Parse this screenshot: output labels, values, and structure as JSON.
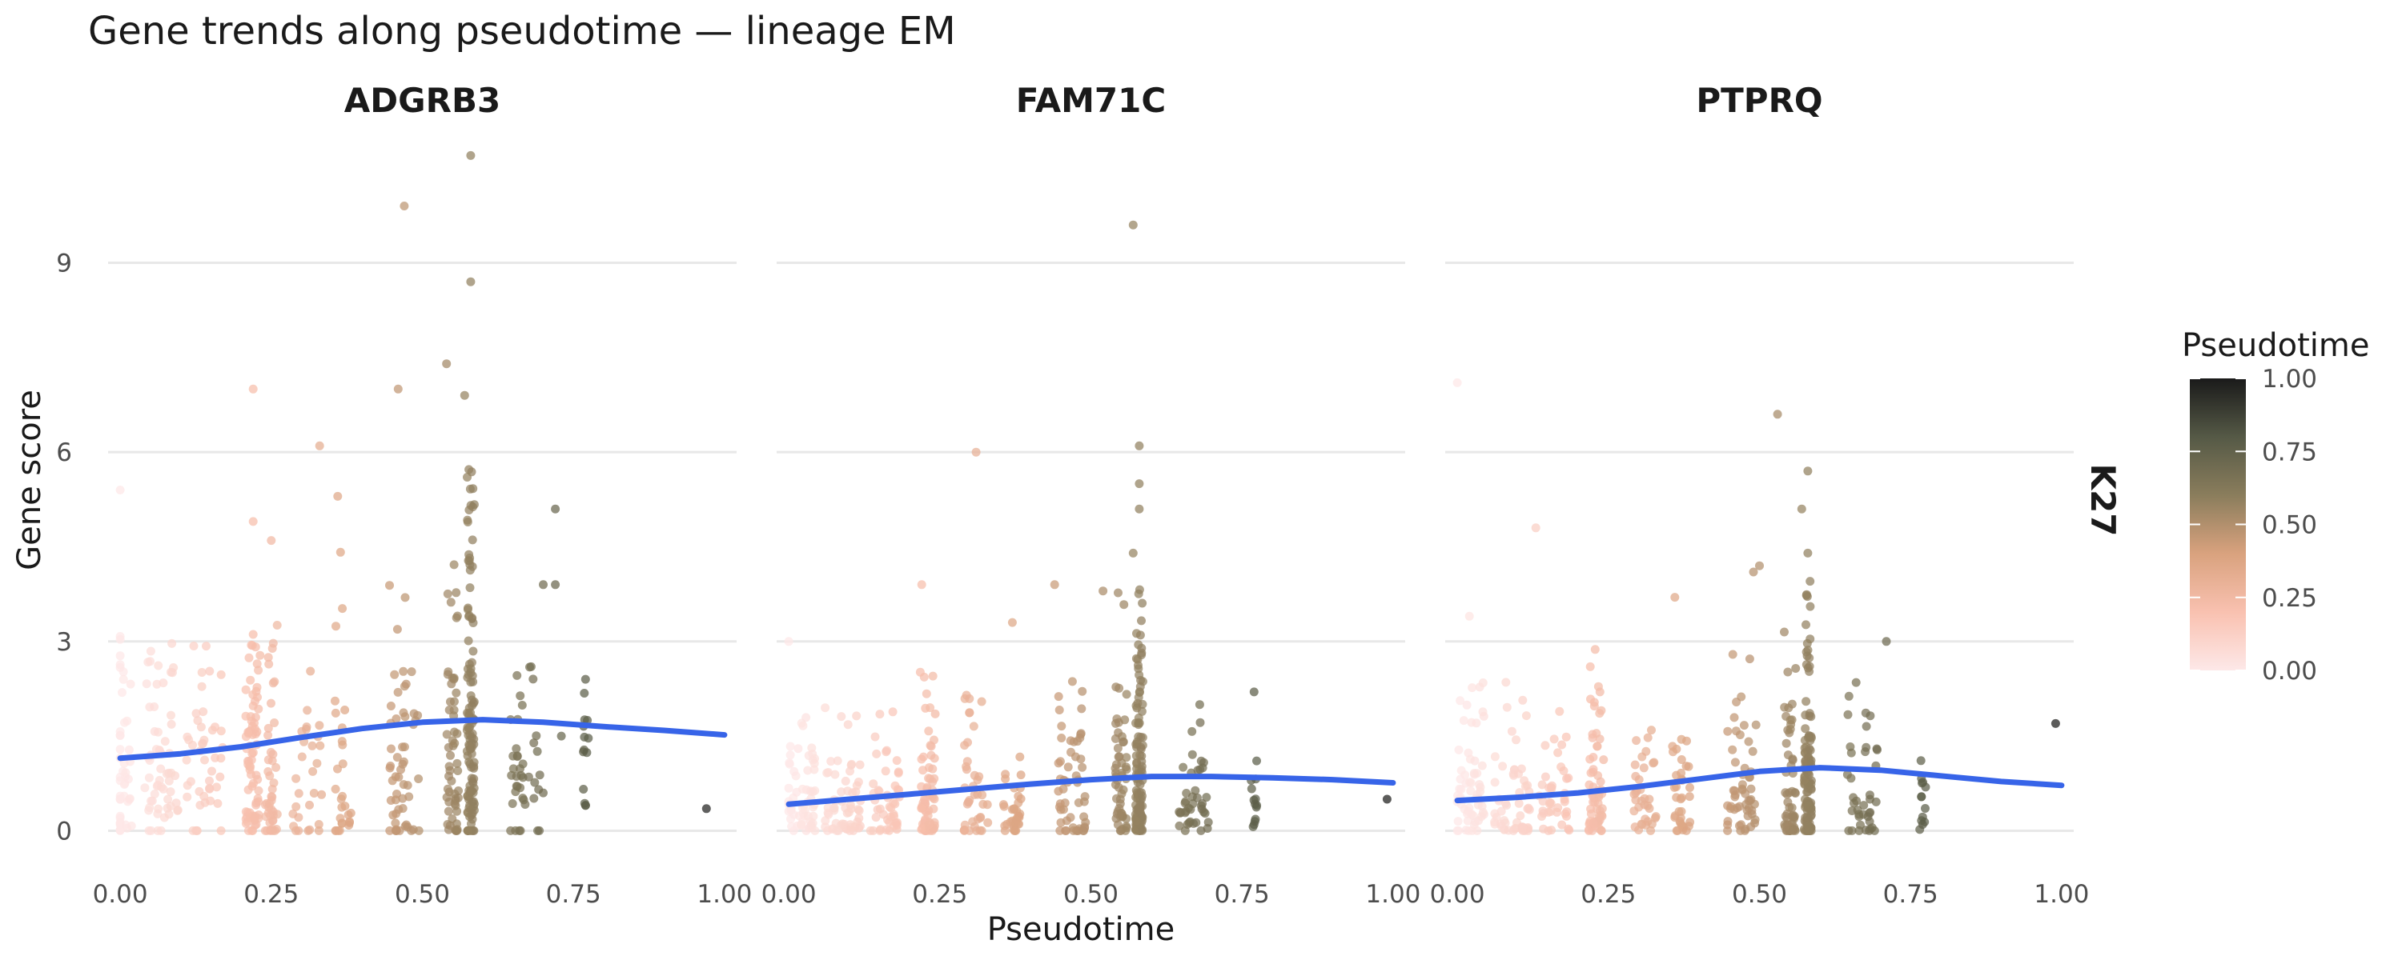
{
  "chart_data": {
    "type": "scatter",
    "title": "Gene trends along pseudotime — lineage EM",
    "xlabel": "Pseudotime",
    "ylabel": "Gene score",
    "xlim": [
      -0.02,
      1.02
    ],
    "ylim": [
      -0.4,
      11.2
    ],
    "x_ticks": [
      "0.00",
      "0.25",
      "0.50",
      "0.75",
      "1.00"
    ],
    "y_ticks": [
      "0",
      "3",
      "6",
      "9"
    ],
    "row_strip": "K27",
    "grid": true,
    "legend": {
      "title": "Pseudotime",
      "position": "right",
      "ticks": [
        "0.00",
        "0.25",
        "0.50",
        "0.75",
        "1.00"
      ],
      "colors": [
        "#fde8e8",
        "#f9c1b0",
        "#d9a27e",
        "#8a7d5c",
        "#555946",
        "#1a1a1a"
      ]
    },
    "trend_color": "#3764e8",
    "facets": [
      {
        "name": "ADGRB3",
        "trend": [
          [
            0.0,
            1.15
          ],
          [
            0.1,
            1.22
          ],
          [
            0.2,
            1.33
          ],
          [
            0.3,
            1.48
          ],
          [
            0.4,
            1.62
          ],
          [
            0.5,
            1.72
          ],
          [
            0.6,
            1.76
          ],
          [
            0.7,
            1.72
          ],
          [
            0.8,
            1.65
          ],
          [
            0.9,
            1.59
          ],
          [
            1.0,
            1.52
          ]
        ],
        "outliers": [
          [
            0.47,
            9.9
          ],
          [
            0.58,
            10.7
          ],
          [
            0.58,
            8.7
          ],
          [
            0.54,
            7.4
          ],
          [
            0.22,
            7.0
          ],
          [
            0.46,
            7.0
          ],
          [
            0.57,
            6.9
          ],
          [
            0.33,
            6.1
          ],
          [
            0.0,
            5.4
          ],
          [
            0.36,
            5.3
          ],
          [
            0.72,
            5.1
          ],
          [
            0.22,
            4.9
          ],
          [
            0.25,
            4.6
          ],
          [
            0.7,
            3.9
          ],
          [
            0.72,
            3.9
          ],
          [
            0.97,
            0.35
          ],
          [
            0.77,
            0.4
          ],
          [
            0.77,
            2.4
          ],
          [
            0.68,
            2.6
          ],
          [
            0.7,
            0.6
          ],
          [
            0.73,
            1.5
          ]
        ],
        "clusters": [
          {
            "x": 0.0,
            "w": 0.04,
            "n": 45,
            "max": 3.6,
            "base": 0.0,
            "spread": 1.0
          },
          {
            "x": 0.07,
            "w": 0.06,
            "n": 60,
            "max": 3.4,
            "base": 0.2,
            "spread": 1.2
          },
          {
            "x": 0.14,
            "w": 0.06,
            "n": 45,
            "max": 3.0,
            "base": 0.4,
            "spread": 1.2
          },
          {
            "x": 0.22,
            "w": 0.025,
            "n": 75,
            "max": 3.3,
            "base": 0.0,
            "spread": 1.5
          },
          {
            "x": 0.25,
            "w": 0.02,
            "n": 45,
            "max": 3.3,
            "base": 0.0,
            "spread": 1.2
          },
          {
            "x": 0.31,
            "w": 0.05,
            "n": 28,
            "max": 2.6,
            "base": 0.0,
            "spread": 1.2
          },
          {
            "x": 0.37,
            "w": 0.03,
            "n": 28,
            "max": 4.7,
            "base": 0.0,
            "spread": 1.4
          },
          {
            "x": 0.47,
            "w": 0.05,
            "n": 55,
            "max": 4.3,
            "base": 0.0,
            "spread": 1.5
          },
          {
            "x": 0.55,
            "w": 0.02,
            "n": 55,
            "max": 6.3,
            "base": 0.0,
            "spread": 1.8
          },
          {
            "x": 0.58,
            "w": 0.012,
            "n": 120,
            "max": 6.0,
            "base": 0.1,
            "spread": 2.0
          },
          {
            "x": 0.67,
            "w": 0.05,
            "n": 40,
            "max": 2.6,
            "base": 0.4,
            "spread": 1.6
          },
          {
            "x": 0.77,
            "w": 0.01,
            "n": 12,
            "max": 2.4,
            "base": 0.3,
            "spread": 1.3
          }
        ]
      },
      {
        "name": "FAM71C",
        "trend": [
          [
            0.0,
            0.42
          ],
          [
            0.1,
            0.5
          ],
          [
            0.2,
            0.58
          ],
          [
            0.3,
            0.66
          ],
          [
            0.4,
            0.74
          ],
          [
            0.5,
            0.81
          ],
          [
            0.6,
            0.86
          ],
          [
            0.7,
            0.86
          ],
          [
            0.8,
            0.84
          ],
          [
            0.9,
            0.81
          ],
          [
            1.0,
            0.76
          ]
        ],
        "outliers": [
          [
            0.57,
            9.6
          ],
          [
            0.58,
            6.1
          ],
          [
            0.31,
            6.0
          ],
          [
            0.58,
            5.5
          ],
          [
            0.58,
            5.1
          ],
          [
            0.57,
            4.4
          ],
          [
            0.44,
            3.9
          ],
          [
            0.52,
            3.8
          ],
          [
            0.22,
            3.9
          ],
          [
            0.37,
            3.3
          ],
          [
            0.0,
            3.0
          ],
          [
            0.77,
            2.2
          ],
          [
            0.68,
            2.0
          ],
          [
            0.99,
            0.5
          ],
          [
            0.77,
            0.1
          ]
        ],
        "clusters": [
          {
            "x": 0.02,
            "w": 0.05,
            "n": 60,
            "max": 2.2,
            "base": 0.0,
            "spread": 0.7
          },
          {
            "x": 0.09,
            "w": 0.06,
            "n": 60,
            "max": 2.0,
            "base": 0.0,
            "spread": 0.7
          },
          {
            "x": 0.16,
            "w": 0.05,
            "n": 45,
            "max": 2.2,
            "base": 0.0,
            "spread": 0.7
          },
          {
            "x": 0.23,
            "w": 0.025,
            "n": 70,
            "max": 3.1,
            "base": 0.0,
            "spread": 0.9
          },
          {
            "x": 0.31,
            "w": 0.04,
            "n": 40,
            "max": 2.6,
            "base": 0.0,
            "spread": 0.7
          },
          {
            "x": 0.37,
            "w": 0.03,
            "n": 35,
            "max": 1.4,
            "base": 0.0,
            "spread": 0.5
          },
          {
            "x": 0.47,
            "w": 0.05,
            "n": 55,
            "max": 3.1,
            "base": 0.0,
            "spread": 0.9
          },
          {
            "x": 0.55,
            "w": 0.02,
            "n": 55,
            "max": 3.8,
            "base": 0.0,
            "spread": 1.1
          },
          {
            "x": 0.58,
            "w": 0.012,
            "n": 120,
            "max": 4.0,
            "base": 0.0,
            "spread": 1.2
          },
          {
            "x": 0.67,
            "w": 0.05,
            "n": 40,
            "max": 1.8,
            "base": 0.0,
            "spread": 0.8
          },
          {
            "x": 0.77,
            "w": 0.01,
            "n": 12,
            "max": 1.8,
            "base": 0.0,
            "spread": 0.8
          }
        ]
      },
      {
        "name": "PTPRQ",
        "trend": [
          [
            0.0,
            0.48
          ],
          [
            0.1,
            0.53
          ],
          [
            0.2,
            0.6
          ],
          [
            0.3,
            0.7
          ],
          [
            0.4,
            0.82
          ],
          [
            0.5,
            0.94
          ],
          [
            0.6,
            1.0
          ],
          [
            0.7,
            0.96
          ],
          [
            0.8,
            0.87
          ],
          [
            0.9,
            0.78
          ],
          [
            1.0,
            0.72
          ]
        ],
        "outliers": [
          [
            0.0,
            7.1
          ],
          [
            0.53,
            6.6
          ],
          [
            0.58,
            5.7
          ],
          [
            0.57,
            5.1
          ],
          [
            0.13,
            4.8
          ],
          [
            0.58,
            4.4
          ],
          [
            0.5,
            4.2
          ],
          [
            0.49,
            4.1
          ],
          [
            0.36,
            3.7
          ],
          [
            0.02,
            3.4
          ],
          [
            0.71,
            3.0
          ],
          [
            0.22,
            2.6
          ],
          [
            0.99,
            1.7
          ],
          [
            0.77,
            0.1
          ]
        ],
        "clusters": [
          {
            "x": 0.02,
            "w": 0.05,
            "n": 60,
            "max": 2.4,
            "base": 0.0,
            "spread": 0.7
          },
          {
            "x": 0.09,
            "w": 0.06,
            "n": 55,
            "max": 2.4,
            "base": 0.0,
            "spread": 0.7
          },
          {
            "x": 0.16,
            "w": 0.05,
            "n": 40,
            "max": 2.2,
            "base": 0.0,
            "spread": 0.7
          },
          {
            "x": 0.23,
            "w": 0.025,
            "n": 65,
            "max": 2.9,
            "base": 0.0,
            "spread": 0.9
          },
          {
            "x": 0.31,
            "w": 0.04,
            "n": 35,
            "max": 1.6,
            "base": 0.0,
            "spread": 0.7
          },
          {
            "x": 0.37,
            "w": 0.03,
            "n": 35,
            "max": 2.0,
            "base": 0.0,
            "spread": 0.6
          },
          {
            "x": 0.47,
            "w": 0.05,
            "n": 55,
            "max": 3.3,
            "base": 0.0,
            "spread": 1.0
          },
          {
            "x": 0.55,
            "w": 0.02,
            "n": 55,
            "max": 3.8,
            "base": 0.0,
            "spread": 1.2
          },
          {
            "x": 0.58,
            "w": 0.012,
            "n": 120,
            "max": 4.2,
            "base": 0.0,
            "spread": 1.3
          },
          {
            "x": 0.67,
            "w": 0.05,
            "n": 40,
            "max": 2.4,
            "base": 0.0,
            "spread": 1.0
          },
          {
            "x": 0.77,
            "w": 0.01,
            "n": 12,
            "max": 1.4,
            "base": 0.0,
            "spread": 0.6
          }
        ]
      }
    ]
  }
}
